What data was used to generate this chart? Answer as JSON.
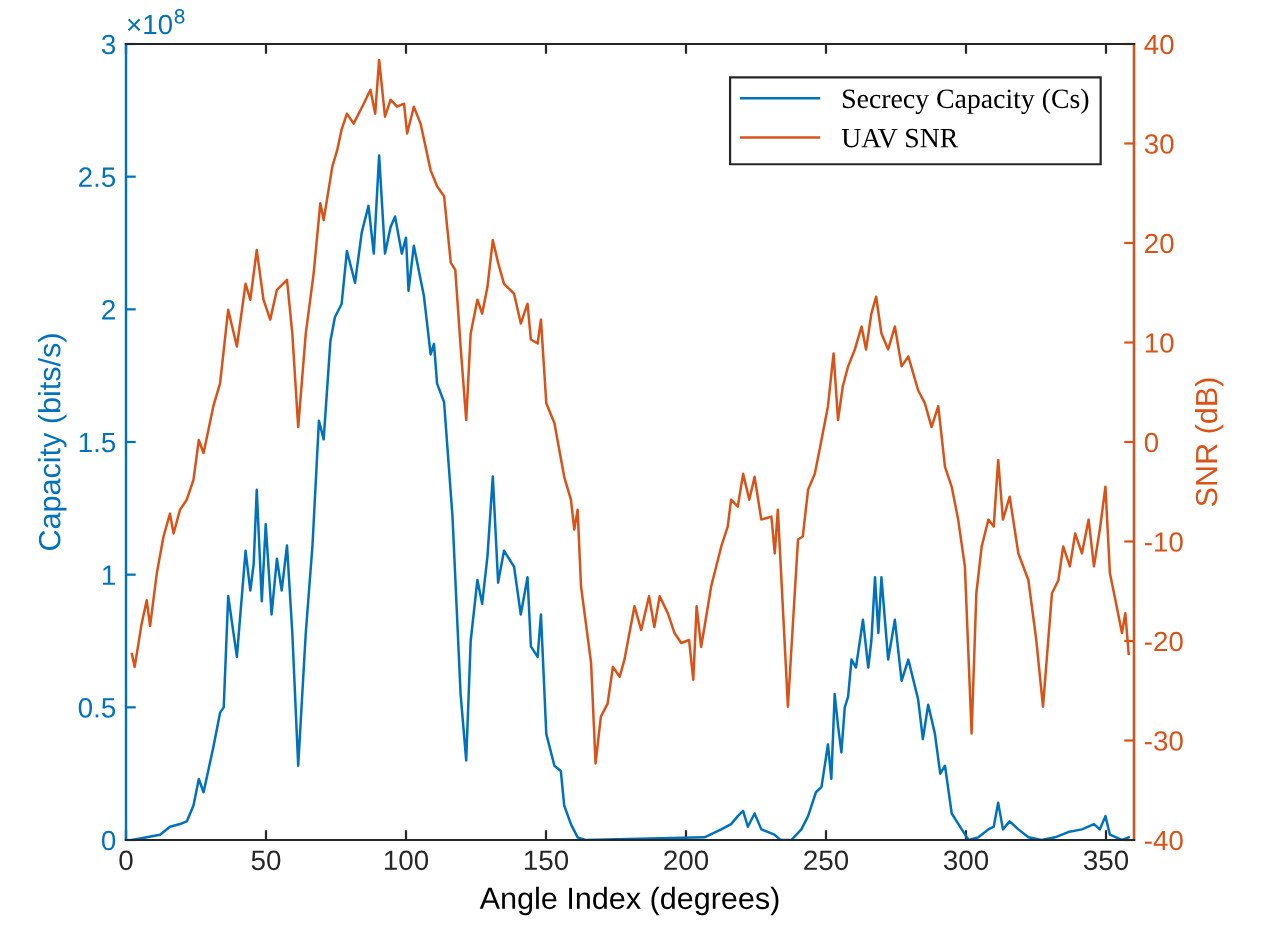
{
  "chart_data": {
    "type": "line",
    "xlabel": "Angle Index (degrees)",
    "ylabel": "Capacity (bits/s)",
    "y2label": "SNR (dB)",
    "xlim": [
      0,
      360
    ],
    "xticks": [
      0,
      50,
      100,
      150,
      200,
      250,
      300,
      350
    ],
    "ylim": [
      0,
      3
    ],
    "yticks": [
      0,
      0.5,
      1,
      1.5,
      2,
      2.5,
      3
    ],
    "y2lim": [
      -40,
      40
    ],
    "y2ticks": [
      -40,
      -30,
      -20,
      -10,
      0,
      10,
      20,
      30,
      40
    ],
    "annotations": [
      "×10$^{8}$"
    ],
    "grid": false,
    "legend": "top right",
    "marker": "none",
    "line_style": "solid",
    "series": [
      {
        "name": "Secrecy Capacity (Cs)",
        "color": "#0072bd",
        "x": [
          2.1,
          7.4,
          12.2,
          15.7,
          19.3,
          21.7,
          24.1,
          26,
          27.7,
          31.2,
          33.6,
          34.9,
          36.5,
          39.6,
          42.7,
          44.4,
          45.6,
          46.7,
          48.5,
          49.9,
          52,
          53.9,
          55.6,
          57.5,
          59.4,
          61.5,
          64.2,
          66.6,
          68.9,
          70.6,
          73,
          74.6,
          77,
          78.9,
          81.8,
          84.2,
          86.6,
          88.5,
          90.4,
          92.5,
          94.5,
          96.1,
          98.5,
          100,
          100.9,
          102.8,
          106.4,
          108.8,
          110,
          111.1,
          113.6,
          116.6,
          119.5,
          121.5,
          123.1,
          125.5,
          127.2,
          129.1,
          131,
          132.9,
          135,
          138.6,
          141,
          143.4,
          144.6,
          147,
          148.2,
          150.1,
          153,
          155.3,
          156.5,
          158.9,
          161.3,
          164,
          206.6,
          212.6,
          216.1,
          218.5,
          220.4,
          222.1,
          224.5,
          226.9,
          231.6,
          233.7,
          237.6,
          241.2,
          243.6,
          246.4,
          248.4,
          250.7,
          251.9,
          253.1,
          254.3,
          255.5,
          256.7,
          257.9,
          259.1,
          260.7,
          263.2,
          265.1,
          266.2,
          267.5,
          268.7,
          269.8,
          272.2,
          274.6,
          277,
          279.4,
          282.9,
          284.6,
          286.5,
          288.9,
          290.8,
          292.5,
          294.9,
          298.5,
          300.9,
          304.4,
          308,
          309.9,
          311.5,
          313.2,
          315.6,
          318.7,
          322.3,
          327,
          331.8,
          336.5,
          341.4,
          345.7,
          347.8,
          349.8,
          351.4,
          355.7,
          358.1
        ],
        "values": [
          0,
          0.01,
          0.02,
          0.05,
          0.06,
          0.07,
          0.13,
          0.23,
          0.18,
          0.35,
          0.48,
          0.5,
          0.92,
          0.69,
          1.09,
          0.94,
          1.04,
          1.32,
          0.9,
          1.19,
          0.85,
          1.06,
          0.94,
          1.11,
          0.78,
          0.28,
          0.78,
          1.11,
          1.58,
          1.51,
          1.88,
          1.97,
          2.02,
          2.22,
          2.1,
          2.29,
          2.39,
          2.21,
          2.58,
          2.21,
          2.31,
          2.35,
          2.21,
          2.27,
          2.07,
          2.24,
          2.05,
          1.83,
          1.87,
          1.72,
          1.65,
          1.22,
          0.55,
          0.3,
          0.75,
          0.98,
          0.89,
          1.07,
          1.37,
          0.97,
          1.09,
          1.03,
          0.85,
          0.99,
          0.73,
          0.69,
          0.85,
          0.4,
          0.28,
          0.26,
          0.13,
          0.06,
          0.01,
          0,
          0.01,
          0.04,
          0.06,
          0.09,
          0.11,
          0.05,
          0.1,
          0.04,
          0.02,
          0,
          0,
          0.04,
          0.09,
          0.18,
          0.2,
          0.36,
          0.23,
          0.55,
          0.43,
          0.33,
          0.5,
          0.54,
          0.68,
          0.65,
          0.83,
          0.65,
          0.75,
          0.99,
          0.78,
          0.99,
          0.68,
          0.83,
          0.6,
          0.68,
          0.53,
          0.38,
          0.51,
          0.4,
          0.25,
          0.28,
          0.1,
          0.04,
          0,
          0.01,
          0.04,
          0.05,
          0.14,
          0.04,
          0.07,
          0.04,
          0.01,
          0,
          0.01,
          0.03,
          0.04,
          0.06,
          0.04,
          0.09,
          0.02,
          0,
          0.01
        ]
      },
      {
        "name": "UAV SNR",
        "color": "#d95319",
        "axis": "y2",
        "x": [
          2.1,
          3.1,
          5.5,
          7.4,
          8.6,
          11,
          13.4,
          15.7,
          17,
          19.3,
          21.7,
          24.1,
          26,
          27.7,
          31.2,
          33.6,
          36.5,
          39.6,
          42.7,
          44.4,
          46.7,
          49.1,
          51.5,
          53.9,
          57.5,
          59.4,
          61.5,
          64.2,
          67,
          69.4,
          70.6,
          73.7,
          75.4,
          77,
          78.9,
          81.3,
          84.9,
          87.3,
          89,
          90.4,
          92.5,
          94.5,
          96.8,
          99.3,
          100.4,
          102.8,
          105.2,
          108.8,
          111.1,
          113.6,
          116,
          117.6,
          119.5,
          121.5,
          123.1,
          125.5,
          127.2,
          129.1,
          131,
          132.9,
          135,
          138.6,
          141,
          143.4,
          144.6,
          147,
          148.2,
          150.1,
          153,
          156.5,
          158.9,
          160.1,
          161.3,
          162.5,
          166.1,
          167.7,
          169.6,
          172,
          173.9,
          176.3,
          178,
          181.6,
          184,
          186.8,
          188.7,
          190.6,
          193.5,
          195.9,
          198.3,
          201.1,
          202.6,
          203.8,
          205.4,
          206.6,
          209,
          212.6,
          214.9,
          216.1,
          218.5,
          220.4,
          222.6,
          224.5,
          226.9,
          230.5,
          231.7,
          232.8,
          236.4,
          240,
          241.7,
          243.6,
          246,
          247.9,
          250.7,
          252.7,
          254.3,
          256,
          257.9,
          260.3,
          262.7,
          264.3,
          266.2,
          267.9,
          269.8,
          272.2,
          274.6,
          277,
          279.4,
          282.9,
          285.3,
          287.7,
          290.1,
          292.5,
          294.9,
          297.2,
          299.6,
          302,
          303.7,
          305.6,
          308,
          309.9,
          311.5,
          313.2,
          315.6,
          318.7,
          322.3,
          325.1,
          327.5,
          330.7,
          333,
          334.7,
          337.1,
          339,
          341.4,
          343.8,
          345.7,
          347.8,
          349.8,
          351.4,
          353.8,
          355.7,
          356.9,
          358.1
        ],
        "values": [
          -21.3,
          -22.6,
          -18.4,
          -15.9,
          -18.5,
          -13.2,
          -9.5,
          -7.2,
          -9.2,
          -6.8,
          -5.8,
          -3.8,
          0.2,
          -1.1,
          3.6,
          5.9,
          13.3,
          9.6,
          15.9,
          14.3,
          19.3,
          14.3,
          12.3,
          15.3,
          16.3,
          10.9,
          1.5,
          10.9,
          16.9,
          24,
          22.3,
          27.7,
          29.3,
          31.4,
          33,
          32,
          34,
          35.4,
          33,
          38.4,
          32.7,
          34.4,
          33.7,
          34,
          31,
          33.7,
          32,
          27.3,
          25.7,
          24.7,
          18,
          17.3,
          9.6,
          2.2,
          10.9,
          14.3,
          12.9,
          15.6,
          20.3,
          18,
          15.9,
          14.9,
          11.9,
          13.9,
          10.3,
          9.9,
          12.3,
          3.9,
          1.9,
          -3.5,
          -5.8,
          -8.8,
          -6.8,
          -14.5,
          -22.2,
          -32.3,
          -27.6,
          -26.3,
          -22.6,
          -23.6,
          -21.9,
          -16.5,
          -18.9,
          -15.5,
          -18.6,
          -15.5,
          -17.2,
          -19.2,
          -20.2,
          -19.9,
          -23.9,
          -16.5,
          -20.6,
          -18.6,
          -14.5,
          -10.5,
          -8.5,
          -5.8,
          -6.5,
          -3.2,
          -5.8,
          -3.5,
          -7.8,
          -7.5,
          -11.2,
          -6.8,
          -26.6,
          -9.8,
          -9.5,
          -4.8,
          -3.2,
          -0.5,
          3.6,
          8.9,
          2.2,
          5.6,
          7.6,
          9.3,
          11.6,
          9.3,
          12.9,
          14.6,
          10.9,
          9.3,
          11.6,
          7.6,
          8.6,
          5.2,
          3.9,
          1.5,
          3.6,
          -2.5,
          -4.5,
          -7.8,
          -12.5,
          -29.3,
          -15.2,
          -10.5,
          -7.8,
          -8.5,
          -1.8,
          -7.8,
          -5.5,
          -11.2,
          -13.9,
          -19.9,
          -26.6,
          -15.2,
          -13.9,
          -10.5,
          -12.5,
          -9.2,
          -11.2,
          -7.8,
          -12.5,
          -8.8,
          -4.5,
          -13.2,
          -16.5,
          -19.2,
          -17.2,
          -21.3
        ]
      }
    ]
  }
}
